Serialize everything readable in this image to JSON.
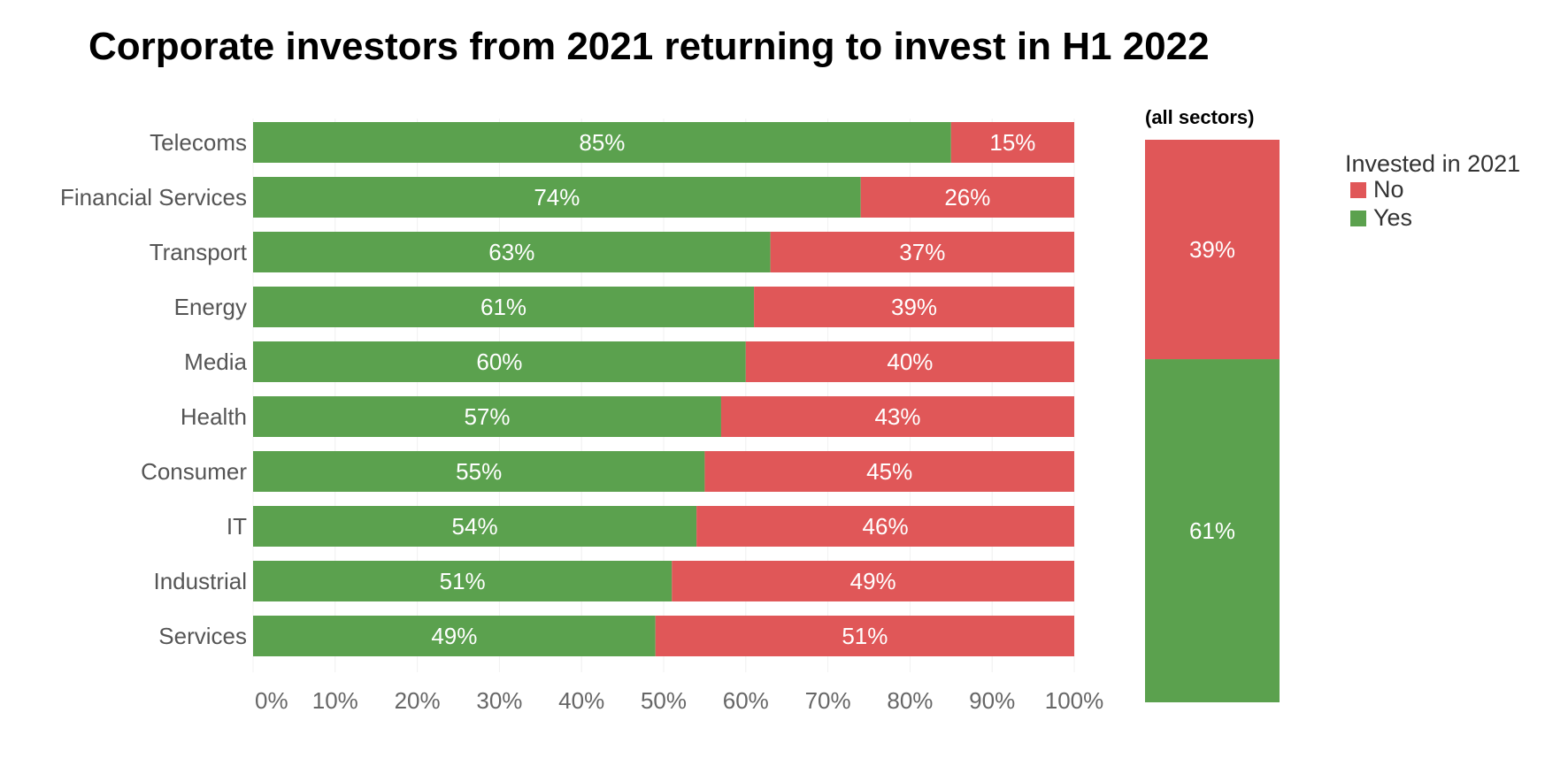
{
  "chart_data": [
    {
      "type": "bar",
      "orientation": "horizontal",
      "stacked": true,
      "title": "Corporate investors from 2021 returning to invest in H1 2022",
      "categories": [
        "Telecoms",
        "Financial Services",
        "Transport",
        "Energy",
        "Media",
        "Health",
        "Consumer",
        "IT",
        "Industrial",
        "Services"
      ],
      "series": [
        {
          "name": "Yes",
          "color": "#5ba14e",
          "values": [
            85,
            74,
            63,
            61,
            60,
            57,
            55,
            54,
            51,
            49
          ],
          "labels": [
            "85%",
            "74%",
            "63%",
            "61%",
            "60%",
            "57%",
            "55%",
            "54%",
            "51%",
            "49%"
          ]
        },
        {
          "name": "No",
          "color": "#e05758",
          "values": [
            15,
            26,
            37,
            39,
            40,
            43,
            45,
            46,
            49,
            51
          ],
          "labels": [
            "15%",
            "26%",
            "37%",
            "39%",
            "40%",
            "43%",
            "45%",
            "46%",
            "49%",
            "51%"
          ]
        }
      ],
      "xlim": [
        0,
        100
      ],
      "x_ticks": [
        "0%",
        "10%",
        "20%",
        "30%",
        "40%",
        "50%",
        "60%",
        "70%",
        "80%",
        "90%",
        "100%"
      ],
      "grid": true
    },
    {
      "type": "bar",
      "stacked": true,
      "title": "(all sectors)",
      "series": [
        {
          "name": "Yes",
          "color": "#5ba14e",
          "value": 61,
          "label": "61%"
        },
        {
          "name": "No",
          "color": "#e05758",
          "value": 39,
          "label": "39%"
        }
      ]
    }
  ],
  "legend": {
    "title": "Invested in 2021",
    "placement": "right",
    "items": [
      {
        "label": "No",
        "color": "#e05758"
      },
      {
        "label": "Yes",
        "color": "#5ba14e"
      }
    ]
  }
}
